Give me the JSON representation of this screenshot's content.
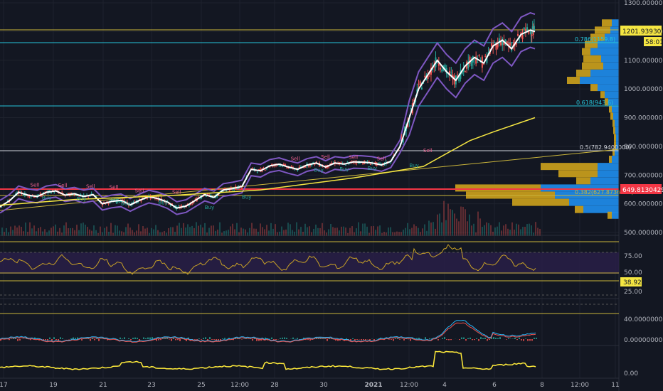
{
  "colors": {
    "background": "#131722",
    "candle_up": "#26a69a",
    "candle_down": "#ef5350",
    "ma_yellow": "#f5e642",
    "ma_white": "#ffffff",
    "bollinger": "#7e57c2",
    "level_yellow": "#c9b43b",
    "level_cyan": "#26c6da",
    "level_red": "#f23645",
    "profile_blue": "#1e88e5",
    "profile_gold": "#c49b1c",
    "rsi": "#c9a227",
    "rsi_band": "#2a1f4a",
    "macd": "#29b6f6",
    "macd_signal": "#ef5350",
    "oscillator": "#ffeb3b",
    "axis_text": "#b2b5be",
    "sell_label": "#f06292",
    "buy_label": "#26a69a"
  },
  "price_axis": {
    "ticks": [
      "1300.00000000",
      "1200.00000000",
      "1100.00000000",
      "1000.00000000",
      "900.00000000",
      "800.00000000",
      "700.00000000",
      "600.00000000",
      "500.00000000"
    ],
    "current_price_tag": "1201.93930356",
    "countdown_tag": "58:01",
    "red_level_tag": "649.81304290"
  },
  "fib_levels": [
    "0.786(1159.8)",
    "0.618(943.6)",
    "0.5(782.9400000)",
    "0.382(627.8736800)"
  ],
  "time_axis": {
    "ticks": [
      "17",
      "19",
      "21",
      "23",
      "25",
      "12:00",
      "28",
      "30",
      "2021",
      "12:00",
      "4",
      "6",
      "8",
      "12:00",
      "11"
    ]
  },
  "signal_labels": {
    "sell": "Sell",
    "buy": "Buy"
  },
  "rsi_panel": {
    "ticks": [
      "75.00",
      "50.00",
      "25.00"
    ],
    "value_tag": "38.92"
  },
  "macd_panel": {
    "ticks": [
      "40.00000000",
      "0.00000000"
    ]
  },
  "osc_panel": {
    "ticks": [
      "0.00"
    ]
  },
  "chart_data": {
    "type": "line",
    "series_price": {
      "x_days": [
        16.8,
        17.2,
        17.6,
        18.0,
        18.4,
        18.8,
        19.2,
        19.6,
        20.0,
        20.4,
        20.8,
        21.2,
        21.6,
        22.0,
        22.4,
        22.8,
        23.2,
        23.6,
        24.0,
        24.4,
        24.8,
        25.2,
        25.6,
        26.0,
        26.4,
        26.8,
        27.2,
        27.6,
        28.0,
        28.4,
        28.8,
        29.2,
        29.6,
        30.0,
        30.4,
        30.8,
        31.2,
        31.6,
        32.0,
        32.4,
        32.8,
        33.2,
        33.6,
        34.0,
        34.4,
        34.8,
        35.2,
        35.6,
        36.0,
        36.4,
        36.8,
        37.2,
        37.6,
        38.0,
        38.4,
        38.8,
        39.2,
        39.6,
        39.8
      ],
      "close": [
        590,
        610,
        640,
        630,
        625,
        640,
        645,
        630,
        635,
        625,
        632,
        600,
        608,
        612,
        596,
        612,
        625,
        618,
        606,
        585,
        592,
        612,
        632,
        622,
        648,
        653,
        660,
        720,
        715,
        732,
        738,
        728,
        720,
        735,
        742,
        728,
        742,
        738,
        746,
        745,
        742,
        735,
        748,
        800,
        900,
        1000,
        1050,
        1100,
        1060,
        1030,
        1080,
        1110,
        1090,
        1150,
        1170,
        1140,
        1190,
        1205,
        1200
      ]
    },
    "ma_long": {
      "x_days": [
        16.8,
        20,
        24,
        28,
        32,
        35,
        37,
        38,
        39.8
      ],
      "values": [
        595,
        615,
        628,
        648,
        690,
        730,
        820,
        850,
        900
      ]
    },
    "rsi_levels": {
      "upper": 80,
      "mid": 50,
      "lower": 40
    },
    "ylim": [
      480,
      1310
    ]
  }
}
